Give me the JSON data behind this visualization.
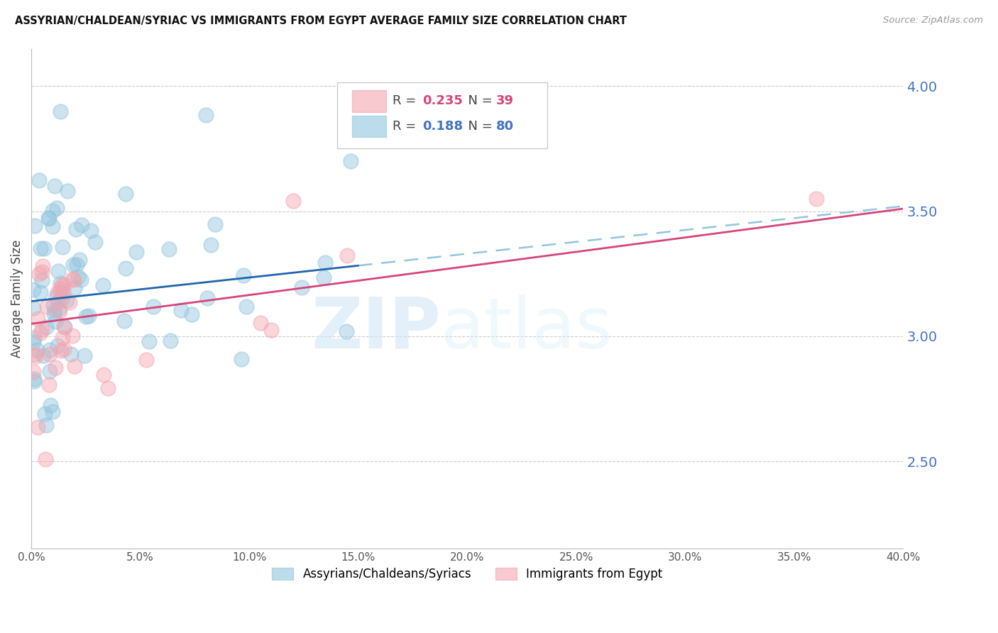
{
  "title": "ASSYRIAN/CHALDEAN/SYRIAC VS IMMIGRANTS FROM EGYPT AVERAGE FAMILY SIZE CORRELATION CHART",
  "source": "Source: ZipAtlas.com",
  "ylabel": "Average Family Size",
  "xmin": 0.0,
  "xmax": 40.0,
  "ymin": 2.15,
  "ymax": 4.15,
  "yticks": [
    2.5,
    3.0,
    3.5,
    4.0
  ],
  "xticks": [
    0.0,
    5.0,
    10.0,
    15.0,
    20.0,
    25.0,
    30.0,
    35.0,
    40.0
  ],
  "blue_color": "#92c5de",
  "pink_color": "#f4a5b0",
  "blue_line_color": "#2166ac",
  "pink_line_color": "#d6457a",
  "axis_color": "#4472c4",
  "R_blue": 0.188,
  "N_blue": 80,
  "R_pink": 0.235,
  "N_pink": 39,
  "legend_label_blue": "Assyrians/Chaldeans/Syriacs",
  "legend_label_pink": "Immigrants from Egypt",
  "watermark_zip": "ZIP",
  "watermark_atlas": "atlas",
  "blue_intercept": 3.14,
  "blue_slope": 0.0095,
  "pink_intercept": 3.05,
  "pink_slope": 0.0115,
  "blue_solid_end": 15.0,
  "blue_dash_end": 40.0
}
